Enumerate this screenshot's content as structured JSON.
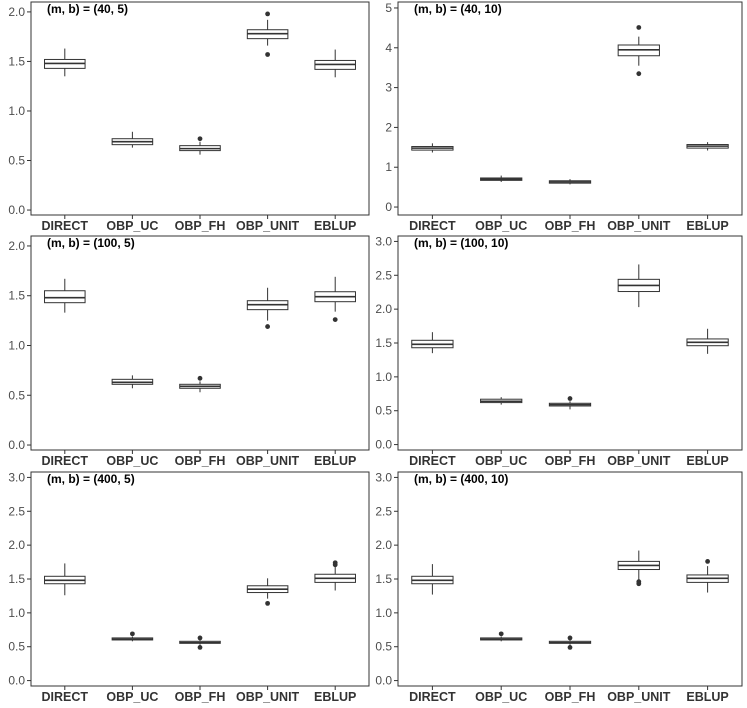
{
  "chart_data": [
    {
      "type": "boxplot",
      "title": "(m, b) = (40, 5)",
      "categories": [
        "DIRECT",
        "OBP_UC",
        "OBP_FH",
        "OBP_UNIT",
        "EBLUP"
      ],
      "ylim": [
        -0.05,
        2.1
      ],
      "yticks": [
        "0.0",
        "0.5",
        "1.0",
        "1.5",
        "2.0"
      ],
      "grid": false,
      "boxes": [
        {
          "lo": 1.35,
          "q1": 1.43,
          "med": 1.48,
          "q3": 1.52,
          "hi": 1.63,
          "outliers": []
        },
        {
          "lo": 0.63,
          "q1": 0.66,
          "med": 0.69,
          "q3": 0.72,
          "hi": 0.79,
          "outliers": []
        },
        {
          "lo": 0.56,
          "q1": 0.6,
          "med": 0.62,
          "q3": 0.65,
          "hi": 0.69,
          "outliers": [
            0.72
          ]
        },
        {
          "lo": 1.66,
          "q1": 1.73,
          "med": 1.78,
          "q3": 1.82,
          "hi": 1.92,
          "outliers": [
            1.98,
            1.57
          ]
        },
        {
          "lo": 1.34,
          "q1": 1.42,
          "med": 1.47,
          "q3": 1.51,
          "hi": 1.62,
          "outliers": []
        }
      ]
    },
    {
      "type": "boxplot",
      "title": "(m, b) = (40, 10)",
      "categories": [
        "DIRECT",
        "OBP_UC",
        "OBP_FH",
        "OBP_UNIT",
        "EBLUP"
      ],
      "ylim": [
        -0.2,
        5.15
      ],
      "yticks": [
        "0",
        "1",
        "2",
        "3",
        "4",
        "5"
      ],
      "grid": false,
      "boxes": [
        {
          "lo": 1.37,
          "q1": 1.43,
          "med": 1.48,
          "q3": 1.52,
          "hi": 1.6,
          "outliers": []
        },
        {
          "lo": 0.63,
          "q1": 0.67,
          "med": 0.7,
          "q3": 0.73,
          "hi": 0.79,
          "outliers": []
        },
        {
          "lo": 0.57,
          "q1": 0.6,
          "med": 0.63,
          "q3": 0.66,
          "hi": 0.7,
          "outliers": []
        },
        {
          "lo": 3.55,
          "q1": 3.8,
          "med": 3.95,
          "q3": 4.07,
          "hi": 4.28,
          "outliers": [
            4.51,
            3.35
          ]
        },
        {
          "lo": 1.42,
          "q1": 1.48,
          "med": 1.53,
          "q3": 1.57,
          "hi": 1.63,
          "outliers": []
        }
      ]
    },
    {
      "type": "boxplot",
      "title": "(m, b) = (100, 5)",
      "categories": [
        "DIRECT",
        "OBP_UC",
        "OBP_FH",
        "OBP_UNIT",
        "EBLUP"
      ],
      "ylim": [
        -0.05,
        2.1
      ],
      "yticks": [
        "0.0",
        "0.5",
        "1.0",
        "1.5",
        "2.0"
      ],
      "grid": false,
      "boxes": [
        {
          "lo": 1.33,
          "q1": 1.43,
          "med": 1.48,
          "q3": 1.55,
          "hi": 1.67,
          "outliers": []
        },
        {
          "lo": 0.57,
          "q1": 0.61,
          "med": 0.63,
          "q3": 0.66,
          "hi": 0.7,
          "outliers": []
        },
        {
          "lo": 0.53,
          "q1": 0.57,
          "med": 0.59,
          "q3": 0.61,
          "hi": 0.64,
          "outliers": [
            0.67
          ]
        },
        {
          "lo": 1.25,
          "q1": 1.36,
          "med": 1.41,
          "q3": 1.45,
          "hi": 1.58,
          "outliers": [
            1.19
          ]
        },
        {
          "lo": 1.34,
          "q1": 1.44,
          "med": 1.49,
          "q3": 1.54,
          "hi": 1.69,
          "outliers": [
            1.26
          ]
        }
      ]
    },
    {
      "type": "boxplot",
      "title": "(m, b) = (100, 10)",
      "categories": [
        "DIRECT",
        "OBP_UC",
        "OBP_FH",
        "OBP_UNIT",
        "EBLUP"
      ],
      "ylim": [
        -0.08,
        3.08
      ],
      "yticks": [
        "0.0",
        "0.5",
        "1.0",
        "1.5",
        "2.0",
        "2.5",
        "3.0"
      ],
      "grid": false,
      "boxes": [
        {
          "lo": 1.35,
          "q1": 1.43,
          "med": 1.48,
          "q3": 1.54,
          "hi": 1.66,
          "outliers": []
        },
        {
          "lo": 0.59,
          "q1": 0.62,
          "med": 0.64,
          "q3": 0.67,
          "hi": 0.7,
          "outliers": []
        },
        {
          "lo": 0.52,
          "q1": 0.57,
          "med": 0.59,
          "q3": 0.61,
          "hi": 0.64,
          "outliers": [
            0.68
          ]
        },
        {
          "lo": 2.03,
          "q1": 2.26,
          "med": 2.35,
          "q3": 2.44,
          "hi": 2.66,
          "outliers": []
        },
        {
          "lo": 1.34,
          "q1": 1.46,
          "med": 1.51,
          "q3": 1.56,
          "hi": 1.71,
          "outliers": []
        }
      ]
    },
    {
      "type": "boxplot",
      "title": "(m, b) = (400, 5)",
      "categories": [
        "DIRECT",
        "OBP_UC",
        "OBP_FH",
        "OBP_UNIT",
        "EBLUP"
      ],
      "ylim": [
        -0.08,
        3.08
      ],
      "yticks": [
        "0.0",
        "0.5",
        "1.0",
        "1.5",
        "2.0",
        "2.5",
        "3.0"
      ],
      "grid": false,
      "boxes": [
        {
          "lo": 1.26,
          "q1": 1.43,
          "med": 1.48,
          "q3": 1.54,
          "hi": 1.73,
          "outliers": []
        },
        {
          "lo": 0.58,
          "q1": 0.6,
          "med": 0.61,
          "q3": 0.63,
          "hi": 0.65,
          "outliers": [
            0.69
          ]
        },
        {
          "lo": 0.53,
          "q1": 0.55,
          "med": 0.56,
          "q3": 0.58,
          "hi": 0.6,
          "outliers": [
            0.63,
            0.49
          ]
        },
        {
          "lo": 1.21,
          "q1": 1.3,
          "med": 1.35,
          "q3": 1.4,
          "hi": 1.51,
          "outliers": [
            1.14
          ]
        },
        {
          "lo": 1.33,
          "q1": 1.45,
          "med": 1.51,
          "q3": 1.57,
          "hi": 1.69,
          "outliers": [
            1.74,
            1.71
          ]
        }
      ]
    },
    {
      "type": "boxplot",
      "title": "(m, b) = (400, 10)",
      "categories": [
        "DIRECT",
        "OBP_UC",
        "OBP_FH",
        "OBP_UNIT",
        "EBLUP"
      ],
      "ylim": [
        -0.08,
        3.08
      ],
      "yticks": [
        "0.0",
        "0.5",
        "1.0",
        "1.5",
        "2.0",
        "2.5",
        "3.0"
      ],
      "grid": false,
      "boxes": [
        {
          "lo": 1.27,
          "q1": 1.43,
          "med": 1.48,
          "q3": 1.54,
          "hi": 1.72,
          "outliers": []
        },
        {
          "lo": 0.58,
          "q1": 0.6,
          "med": 0.61,
          "q3": 0.63,
          "hi": 0.65,
          "outliers": [
            0.69
          ]
        },
        {
          "lo": 0.53,
          "q1": 0.55,
          "med": 0.56,
          "q3": 0.58,
          "hi": 0.6,
          "outliers": [
            0.63,
            0.49
          ]
        },
        {
          "lo": 1.48,
          "q1": 1.64,
          "med": 1.7,
          "q3": 1.76,
          "hi": 1.92,
          "outliers": [
            1.46,
            1.43
          ]
        },
        {
          "lo": 1.3,
          "q1": 1.45,
          "med": 1.51,
          "q3": 1.56,
          "hi": 1.69,
          "outliers": [
            1.76
          ]
        }
      ]
    }
  ]
}
